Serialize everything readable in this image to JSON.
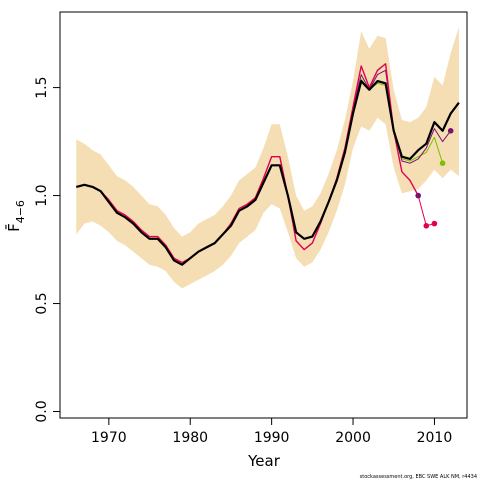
{
  "chart_data": {
    "type": "line",
    "xlabel": "Year",
    "ylabel": "F̄",
    "ylabel_subscript": "4−6",
    "xlim": [
      1964,
      2014
    ],
    "ylim": [
      -0.03,
      1.85
    ],
    "x_ticks": [
      1970,
      1980,
      1990,
      2000,
      2010
    ],
    "x_tick_labels": [
      "1970",
      "1980",
      "1990",
      "2000",
      "2010"
    ],
    "y_ticks": [
      0,
      0.5,
      1.0,
      1.5
    ],
    "y_tick_labels": [
      "0.0",
      "0.5",
      "1.0",
      "1.5"
    ],
    "grid": false,
    "band": {
      "color": "#f5deb3",
      "x": [
        1966,
        1967,
        1968,
        1969,
        1970,
        1971,
        1972,
        1973,
        1974,
        1975,
        1976,
        1977,
        1978,
        1979,
        1980,
        1981,
        1982,
        1983,
        1984,
        1985,
        1986,
        1987,
        1988,
        1989,
        1990,
        1991,
        1992,
        1993,
        1994,
        1995,
        1996,
        1997,
        1998,
        1999,
        2000,
        2001,
        2002,
        2003,
        2004,
        2005,
        2006,
        2007,
        2008,
        2009,
        2010,
        2011,
        2012,
        2013
      ],
      "upper": [
        1.26,
        1.24,
        1.21,
        1.19,
        1.14,
        1.09,
        1.07,
        1.04,
        1.0,
        0.96,
        0.95,
        0.91,
        0.85,
        0.81,
        0.83,
        0.87,
        0.89,
        0.91,
        0.95,
        1.0,
        1.07,
        1.1,
        1.13,
        1.22,
        1.33,
        1.33,
        1.18,
        1.0,
        0.93,
        0.95,
        1.01,
        1.1,
        1.21,
        1.35,
        1.53,
        1.76,
        1.68,
        1.74,
        1.73,
        1.49,
        1.35,
        1.34,
        1.36,
        1.41,
        1.55,
        1.51,
        1.66,
        1.78
      ],
      "lower": [
        0.82,
        0.87,
        0.88,
        0.86,
        0.83,
        0.79,
        0.77,
        0.74,
        0.71,
        0.68,
        0.67,
        0.65,
        0.6,
        0.57,
        0.59,
        0.61,
        0.63,
        0.65,
        0.68,
        0.72,
        0.78,
        0.81,
        0.84,
        0.92,
        0.96,
        0.94,
        0.83,
        0.71,
        0.67,
        0.69,
        0.75,
        0.83,
        0.93,
        1.05,
        1.22,
        1.32,
        1.3,
        1.36,
        1.33,
        1.13,
        1.01,
        1.02,
        1.03,
        1.07,
        1.12,
        1.08,
        1.12,
        1.09
      ]
    },
    "series": [
      {
        "color": "#000000",
        "width": 2.2,
        "x": [
          1966,
          1967,
          1968,
          1969,
          1970,
          1971,
          1972,
          1973,
          1974,
          1975,
          1976,
          1977,
          1978,
          1979,
          1980,
          1981,
          1982,
          1983,
          1984,
          1985,
          1986,
          1987,
          1988,
          1989,
          1990,
          1991,
          1992,
          1993,
          1994,
          1995,
          1996,
          1997,
          1998,
          1999,
          2000,
          2001,
          2002,
          2003,
          2004,
          2005,
          2006,
          2007,
          2008,
          2009,
          2010,
          2011,
          2012,
          2013
        ],
        "values": [
          1.04,
          1.05,
          1.04,
          1.02,
          0.97,
          0.92,
          0.9,
          0.87,
          0.83,
          0.8,
          0.8,
          0.76,
          0.7,
          0.68,
          0.71,
          0.74,
          0.76,
          0.78,
          0.82,
          0.86,
          0.93,
          0.95,
          0.98,
          1.06,
          1.14,
          1.14,
          1.0,
          0.83,
          0.8,
          0.81,
          0.88,
          0.97,
          1.07,
          1.2,
          1.38,
          1.53,
          1.49,
          1.53,
          1.52,
          1.3,
          1.18,
          1.17,
          1.21,
          1.24,
          1.34,
          1.3,
          1.38,
          1.43
        ]
      },
      {
        "color": "#e00050",
        "width": 1.4,
        "x": [
          1966,
          1967,
          1968,
          1969,
          1970,
          1971,
          1972,
          1973,
          1974,
          1975,
          1976,
          1977,
          1978,
          1979,
          1980,
          1981,
          1982,
          1983,
          1984,
          1985,
          1986,
          1987,
          1988,
          1989,
          1990,
          1991,
          1992,
          1993,
          1994,
          1995,
          1996,
          1997,
          1998,
          1999,
          2000,
          2001,
          2002,
          2003,
          2004,
          2005,
          2006,
          2007,
          2008
        ],
        "values": [
          1.04,
          1.05,
          1.04,
          1.02,
          0.98,
          0.93,
          0.91,
          0.88,
          0.84,
          0.81,
          0.81,
          0.77,
          0.71,
          0.69,
          0.71,
          0.74,
          0.76,
          0.78,
          0.82,
          0.87,
          0.94,
          0.96,
          0.99,
          1.08,
          1.18,
          1.18,
          1.0,
          0.79,
          0.75,
          0.78,
          0.87,
          0.97,
          1.08,
          1.22,
          1.41,
          1.6,
          1.5,
          1.58,
          1.61,
          1.3,
          1.11,
          1.07,
          1.0
        ]
      },
      {
        "color": "#e00050",
        "width": 1.0,
        "x": [
          2008,
          2009,
          2010
        ],
        "values": [
          1.0,
          0.86,
          0.87
        ]
      },
      {
        "color": "#7cbf00",
        "width": 1.0,
        "x": [
          2000,
          2001,
          2002,
          2003,
          2004,
          2005,
          2006,
          2007,
          2008,
          2009,
          2010,
          2011
        ],
        "values": [
          1.39,
          1.54,
          1.49,
          1.52,
          1.51,
          1.29,
          1.17,
          1.16,
          1.18,
          1.2,
          1.27,
          1.15
        ]
      },
      {
        "color": "#7b1070",
        "width": 1.0,
        "x": [
          2000,
          2001,
          2002,
          2003,
          2004,
          2005,
          2006,
          2007,
          2008,
          2009,
          2010,
          2011,
          2012
        ],
        "values": [
          1.4,
          1.56,
          1.49,
          1.56,
          1.58,
          1.31,
          1.16,
          1.15,
          1.17,
          1.22,
          1.31,
          1.25,
          1.3
        ]
      }
    ],
    "endpoints": [
      {
        "x": 2008,
        "y": 1.0,
        "color": "#7b1070"
      },
      {
        "x": 2009,
        "y": 0.86,
        "color": "#e00050"
      },
      {
        "x": 2010,
        "y": 0.87,
        "color": "#e00050"
      },
      {
        "x": 2011,
        "y": 1.15,
        "color": "#7cbf00"
      },
      {
        "x": 2012,
        "y": 1.3,
        "color": "#7b1070"
      }
    ],
    "footnote": "stockassessment.org, EBC SWE ALK NM, r4434"
  }
}
